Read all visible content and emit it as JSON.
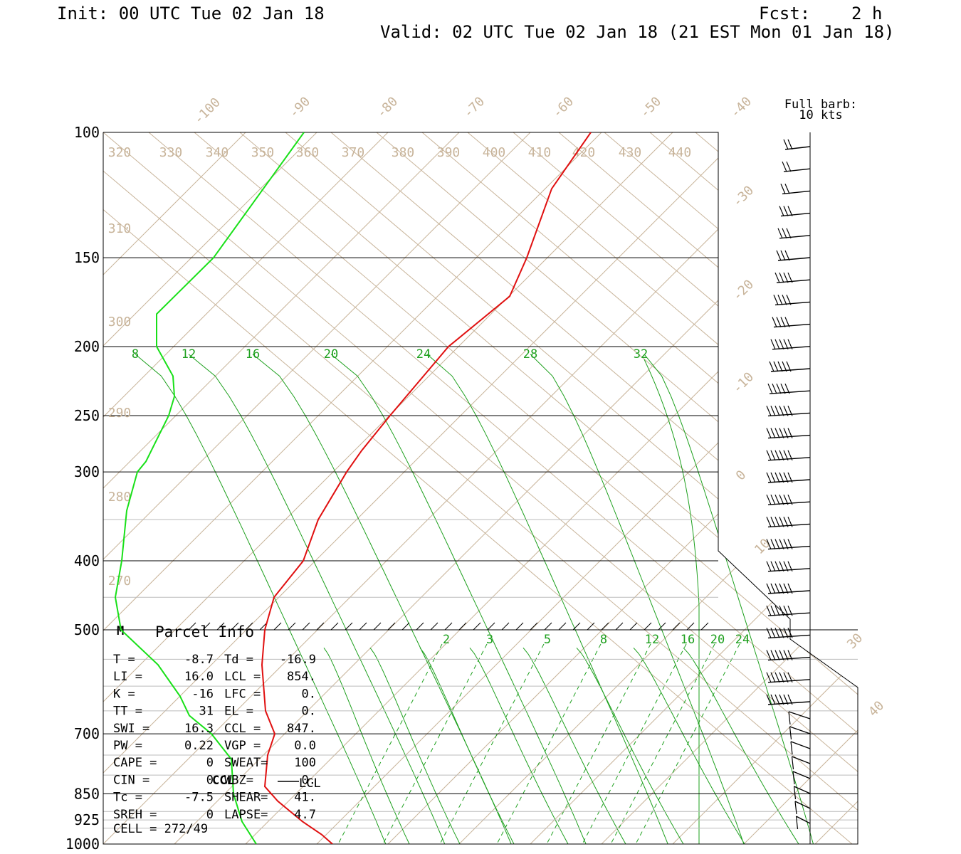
{
  "header": {
    "init": "Init: 00 UTC Tue 02 Jan 18",
    "fcst": "Fcst:    2 h",
    "valid": "Valid: 02 UTC Tue 02 Jan 18 (21 EST Mon 01 Jan 18)"
  },
  "barb_legend": {
    "line1": "Full barb:",
    "line2": "10 kts"
  },
  "chart_data": {
    "type": "line",
    "title": "",
    "y_axis": {
      "scale": "log",
      "pressure_labels": [
        "100",
        "150",
        "200",
        "250",
        "300",
        "400",
        "500",
        "700",
        "850",
        "925",
        "1000"
      ]
    },
    "isotherm_labels": [
      "-100",
      "-90",
      "-80",
      "-70",
      "-60",
      "-50",
      "-40",
      "-30",
      "-20",
      "-10",
      "0",
      "10",
      "30",
      "40"
    ],
    "theta_labels": [
      "320",
      "330",
      "340",
      "350",
      "360",
      "370",
      "380",
      "390",
      "400",
      "410",
      "420",
      "430",
      "440",
      "310",
      "300",
      "290",
      "280",
      "270"
    ],
    "upper_green_labels": [
      "8",
      "12",
      "16",
      "20",
      "24",
      "28",
      "32"
    ],
    "lower_green_labels": [
      "2",
      "3",
      "5",
      "8",
      "12",
      "16",
      "20",
      "24"
    ],
    "series": [
      {
        "color": "#e01010",
        "points": [
          [
            100,
            830
          ],
          [
            120,
            775
          ],
          [
            150,
            740
          ],
          [
            170,
            716
          ],
          [
            200,
            630
          ],
          [
            250,
            548
          ],
          [
            280,
            508
          ],
          [
            300,
            487
          ],
          [
            350,
            447
          ],
          [
            400,
            426
          ],
          [
            450,
            385
          ],
          [
            500,
            372
          ],
          [
            560,
            368
          ],
          [
            650,
            373
          ],
          [
            700,
            386
          ],
          [
            750,
            376
          ],
          [
            830,
            372
          ],
          [
            870,
            390
          ],
          [
            930,
            425
          ],
          [
            970,
            452
          ],
          [
            1000,
            467
          ]
        ]
      },
      {
        "color": "#18e018",
        "points": [
          [
            100,
            427
          ],
          [
            150,
            300
          ],
          [
            180,
            220
          ],
          [
            200,
            220
          ],
          [
            220,
            243
          ],
          [
            235,
            245
          ],
          [
            250,
            237
          ],
          [
            290,
            205
          ],
          [
            300,
            193
          ],
          [
            340,
            178
          ],
          [
            400,
            171
          ],
          [
            450,
            162
          ],
          [
            500,
            170
          ],
          [
            560,
            222
          ],
          [
            620,
            253
          ],
          [
            660,
            266
          ],
          [
            700,
            297
          ],
          [
            760,
            325
          ],
          [
            850,
            328
          ],
          [
            930,
            340
          ],
          [
            1000,
            360
          ]
        ]
      }
    ],
    "wind_barbs_levels": 33
  },
  "parcel_info": {
    "title": "Parcel Info",
    "rows": [
      [
        "T  =",
        "-8.7",
        "Td =",
        "-16.9"
      ],
      [
        "LI =",
        "16.0",
        "LCL =",
        "854."
      ],
      [
        "K  =",
        "-16",
        "LFC =",
        "0."
      ],
      [
        "TT =",
        "31",
        "EL  =",
        "0."
      ],
      [
        "SWI =",
        "16.3",
        "CCL =",
        "847."
      ],
      [
        "PW =",
        "0.22",
        "VGP =",
        "0.0"
      ],
      [
        "CAPE =",
        "0",
        "SWEAT=",
        "100"
      ],
      [
        "CIN =",
        "0",
        "WBZ=",
        "0."
      ],
      [
        "Tc =",
        "-7.5",
        "SHEAR=",
        "41."
      ],
      [
        "SREH =",
        "0",
        "LAPSE=",
        "4.7"
      ]
    ],
    "cell": "CELL = 272/49",
    "ccl_label": "CCL",
    "lcl_label": "LCL",
    "m_label": "M"
  }
}
